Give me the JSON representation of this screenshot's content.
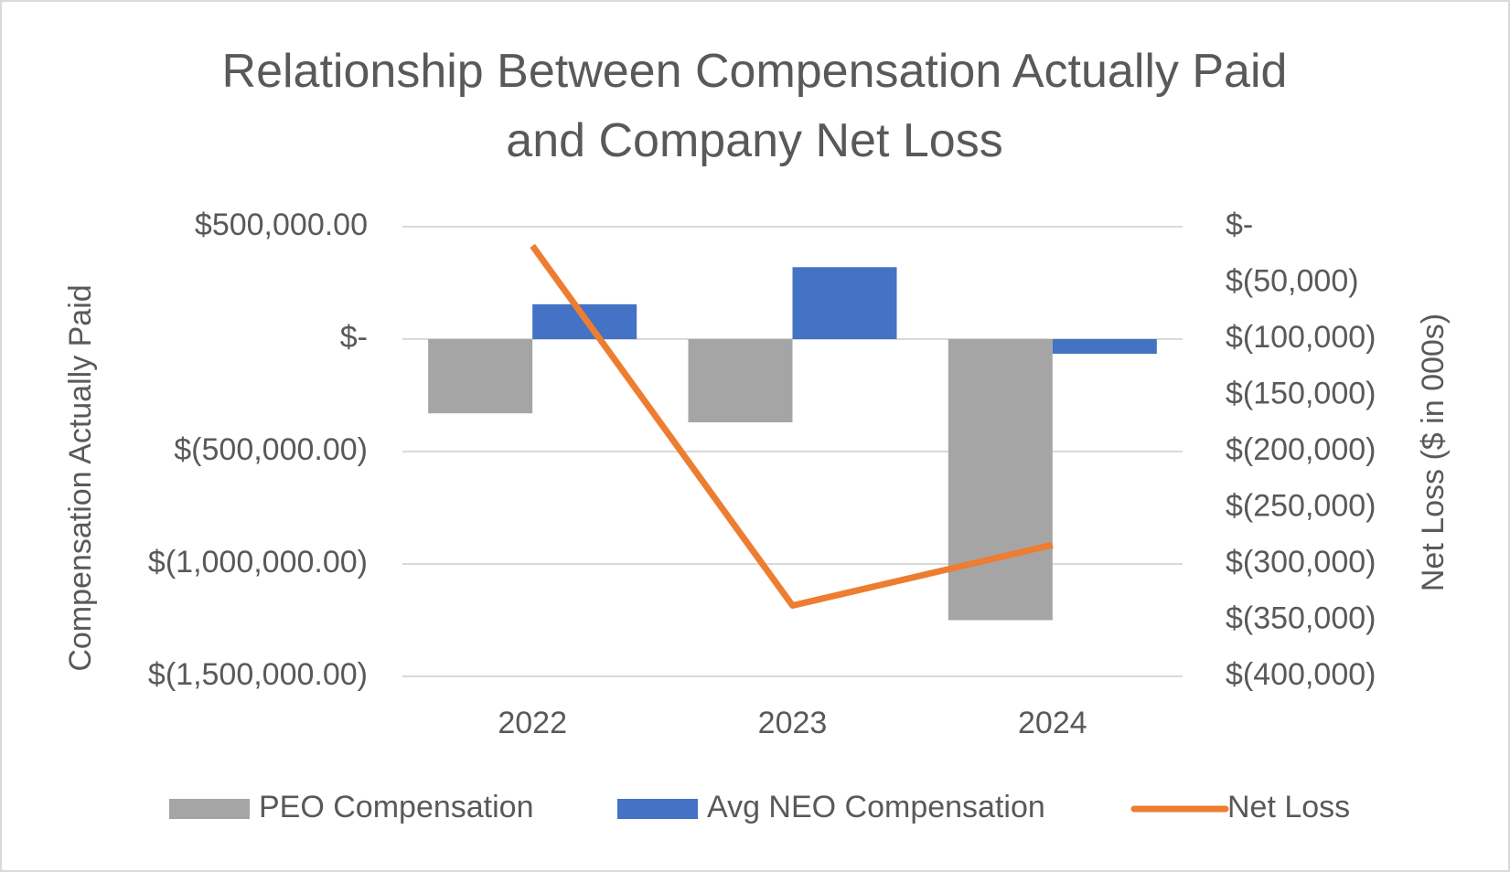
{
  "chart_data": {
    "type": "bar_line",
    "title": "Relationship Between Compensation Actually Paid and Company Net Loss",
    "y_label": "Compensation Actually Paid",
    "y2_label": "Net Loss ($ in 000s)",
    "categories": [
      "2022",
      "2023",
      "2024"
    ],
    "series": [
      {
        "name": "PEO Compensation",
        "type": "bar",
        "color": "#a5a5a5",
        "values": [
          -330000,
          -370000,
          -1250000
        ]
      },
      {
        "name": "Avg NEO Compensation",
        "type": "bar",
        "color": "#4472c4",
        "values": [
          155000,
          320000,
          -65000
        ]
      },
      {
        "name": "Net Loss",
        "type": "line",
        "axis": "y2",
        "color": "#ed7d31",
        "values": [
          -17000,
          -337000,
          -283000
        ]
      }
    ],
    "ylim": [
      -1500000,
      500000
    ],
    "yticks": [
      {
        "value": 500000,
        "label": "$500,000.00"
      },
      {
        "value": 0,
        "label": "$-"
      },
      {
        "value": -500000,
        "label": "$(500,000.00)"
      },
      {
        "value": -1000000,
        "label": "$(1,000,000.00)"
      },
      {
        "value": -1500000,
        "label": "$(1,500,000.00)"
      }
    ],
    "y2lim": [
      -400000,
      0
    ],
    "y2ticks": [
      {
        "value": 0,
        "label": "$-"
      },
      {
        "value": -50000,
        "label": "$(50,000)"
      },
      {
        "value": -100000,
        "label": "$(100,000)"
      },
      {
        "value": -150000,
        "label": "$(150,000)"
      },
      {
        "value": -200000,
        "label": "$(200,000)"
      },
      {
        "value": -250000,
        "label": "$(250,000)"
      },
      {
        "value": -300000,
        "label": "$(300,000)"
      },
      {
        "value": -350000,
        "label": "$(350,000)"
      },
      {
        "value": -400000,
        "label": "$(400,000)"
      }
    ],
    "grid": true,
    "legend": "bottom"
  }
}
